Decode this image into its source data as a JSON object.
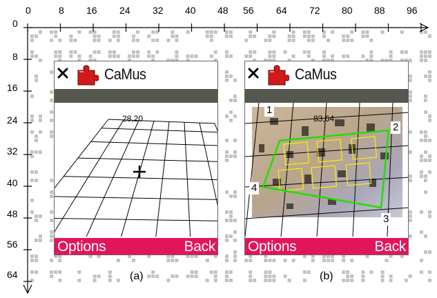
{
  "axis": {
    "x_ticks": [
      "0",
      "8",
      "16",
      "24",
      "32",
      "40",
      "48",
      "56",
      "64",
      "72",
      "80",
      "88",
      "96"
    ],
    "y_ticks": [
      "0",
      "8",
      "16",
      "24",
      "32",
      "40",
      "48",
      "56",
      "64"
    ]
  },
  "panels": [
    {
      "app_title": "CaMus",
      "coords": "28,20",
      "softkey_left": "Options",
      "softkey_right": "Back",
      "caption": "(a)"
    },
    {
      "app_title": "CaMus",
      "coords": "83,64",
      "corner_labels": [
        "1",
        "2",
        "3",
        "4"
      ],
      "softkey_left": "Options",
      "softkey_right": "Back",
      "caption": "(b)"
    }
  ],
  "icons": {
    "close": "close-icon",
    "app": "puzzle-piece-icon",
    "crosshair": "crosshair-icon"
  },
  "colors": {
    "softkey_bar": "#e3155a",
    "title_separator": "#55584f",
    "marker_outline": "#22dd00",
    "cell_outline": "#ffee00",
    "app_icon": "#d11a1a"
  }
}
